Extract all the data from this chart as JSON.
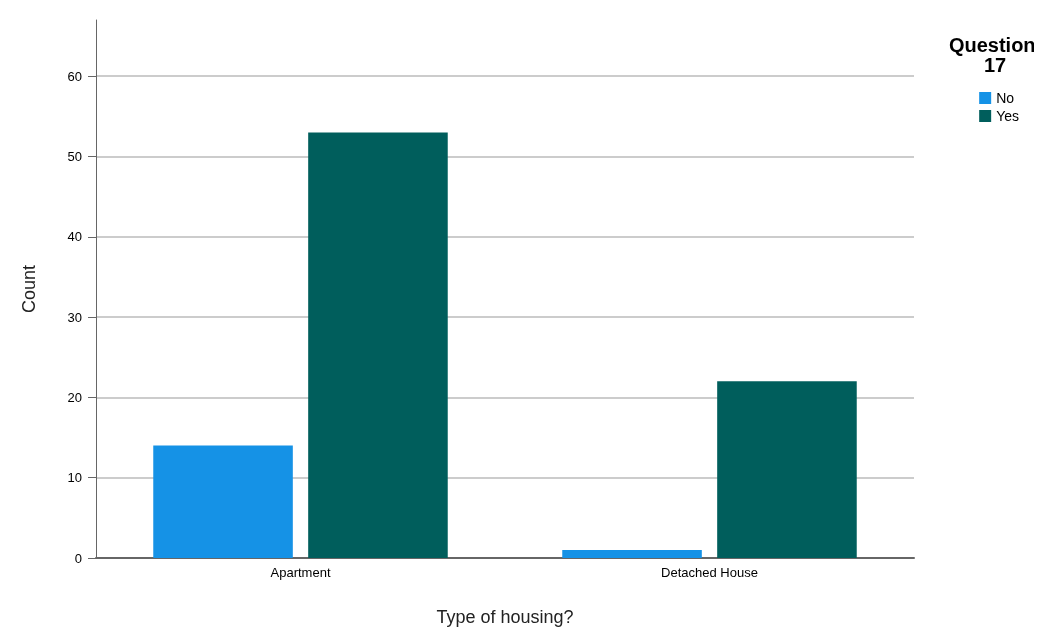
{
  "chart_data": {
    "type": "bar",
    "xlabel": "Type of housing?",
    "ylabel": "Count",
    "legend_title": "Question 17",
    "categories": [
      "Apartment",
      "Detached House"
    ],
    "series": [
      {
        "name": "No",
        "color": "#1592e6",
        "values": [
          14,
          1
        ]
      },
      {
        "name": "Yes",
        "color": "#005e5c",
        "values": [
          53,
          22
        ]
      }
    ],
    "ylim": [
      0,
      67
    ],
    "yticks": [
      0,
      10,
      20,
      30,
      40,
      50,
      60
    ],
    "grid": "y",
    "legend": "top right"
  }
}
